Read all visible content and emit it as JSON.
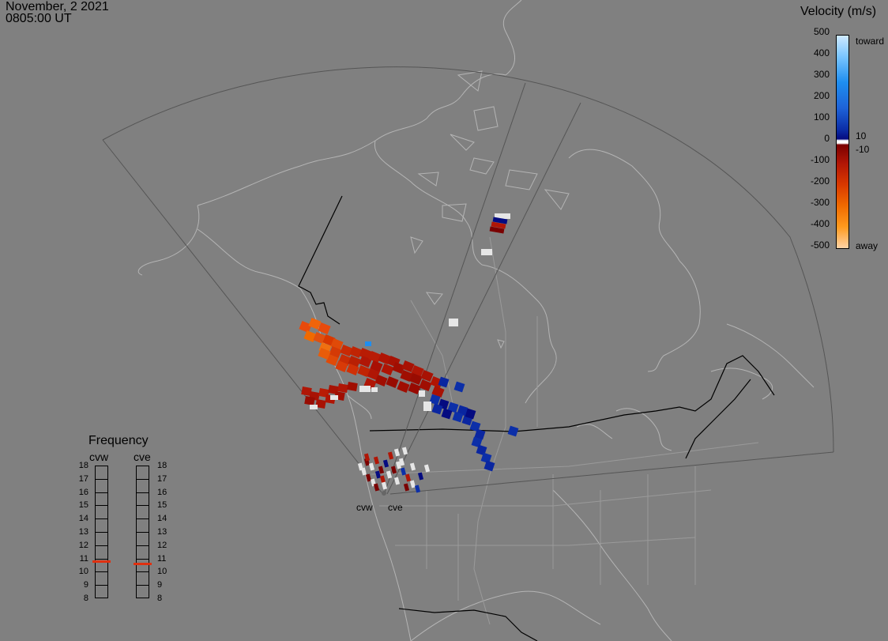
{
  "timestamp": {
    "date": "November, 2 2021",
    "time": "0805:00 UT"
  },
  "colorbar": {
    "title": "Velocity (m/s)",
    "ticks": [
      "500",
      "400",
      "300",
      "200",
      "100",
      "0",
      "-100",
      "-200",
      "-300",
      "-400",
      "-500"
    ],
    "side_labels": {
      "toward": "toward",
      "ten": "10",
      "minus_ten": "-10",
      "away": "away"
    },
    "colors_top_to_bottom": [
      "#cfe9ff",
      "#79c5ff",
      "#1e8ef0",
      "#1e63d8",
      "#0c2fa8",
      "#050b80",
      "#ffffff",
      "#7a0000",
      "#b01606",
      "#d83800",
      "#f06a00",
      "#ff9a1e",
      "#ffd3a6"
    ]
  },
  "frequency": {
    "title": "Frequency",
    "range_mhz": [
      8,
      18
    ],
    "labels": [
      "18",
      "17",
      "16",
      "15",
      "14",
      "13",
      "12",
      "11",
      "10",
      "9",
      "8"
    ],
    "radars": [
      {
        "code": "cvw",
        "frequency_mhz": 10.8,
        "marker_color": "#e03010"
      },
      {
        "code": "cve",
        "frequency_mhz": 10.6,
        "marker_color": "#e03010"
      }
    ]
  },
  "sites": [
    {
      "code": "cvw"
    },
    {
      "code": "cve"
    }
  ],
  "map": {
    "background": "#808080",
    "coastline_color": "#b4b4b4",
    "fov_color": "#555555",
    "border_color": "#000000"
  }
}
